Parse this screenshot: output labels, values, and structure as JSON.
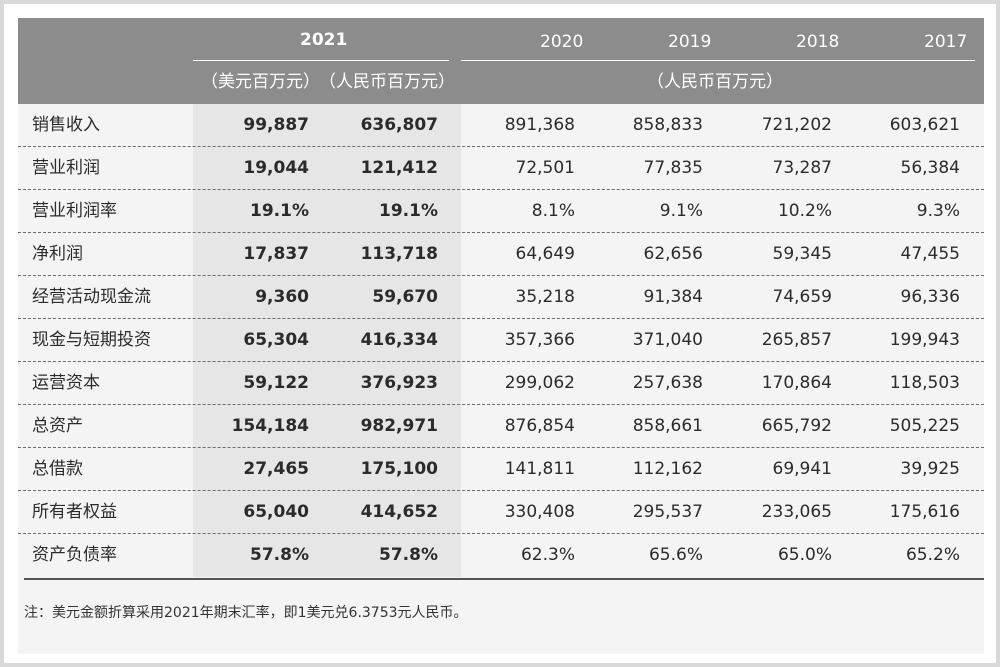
{
  "header": {
    "year_main": "2021",
    "years_other": [
      "2020",
      "2019",
      "2018",
      "2017"
    ],
    "unit_usd": "（美元百万元）",
    "unit_rmb": "（人民币百万元）",
    "unit_rmb_other": "（人民币百万元）"
  },
  "rows": [
    {
      "label": "销售收入",
      "usd": "99,887",
      "rmb": "636,807",
      "y2020": "891,368",
      "y2019": "858,833",
      "y2018": "721,202",
      "y2017": "603,621"
    },
    {
      "label": "营业利润",
      "usd": "19,044",
      "rmb": "121,412",
      "y2020": "72,501",
      "y2019": "77,835",
      "y2018": "73,287",
      "y2017": "56,384"
    },
    {
      "label": "营业利润率",
      "usd": "19.1%",
      "rmb": "19.1%",
      "y2020": "8.1%",
      "y2019": "9.1%",
      "y2018": "10.2%",
      "y2017": "9.3%"
    },
    {
      "label": "净利润",
      "usd": "17,837",
      "rmb": "113,718",
      "y2020": "64,649",
      "y2019": "62,656",
      "y2018": "59,345",
      "y2017": "47,455"
    },
    {
      "label": "经营活动现金流",
      "usd": "9,360",
      "rmb": "59,670",
      "y2020": "35,218",
      "y2019": "91,384",
      "y2018": "74,659",
      "y2017": "96,336"
    },
    {
      "label": "现金与短期投资",
      "usd": "65,304",
      "rmb": "416,334",
      "y2020": "357,366",
      "y2019": "371,040",
      "y2018": "265,857",
      "y2017": "199,943"
    },
    {
      "label": "运营资本",
      "usd": "59,122",
      "rmb": "376,923",
      "y2020": "299,062",
      "y2019": "257,638",
      "y2018": "170,864",
      "y2017": "118,503"
    },
    {
      "label": "总资产",
      "usd": "154,184",
      "rmb": "982,971",
      "y2020": "876,854",
      "y2019": "858,661",
      "y2018": "665,792",
      "y2017": "505,225"
    },
    {
      "label": "总借款",
      "usd": "27,465",
      "rmb": "175,100",
      "y2020": "141,811",
      "y2019": "112,162",
      "y2018": "69,941",
      "y2017": "39,925"
    },
    {
      "label": "所有者权益",
      "usd": "65,040",
      "rmb": "414,652",
      "y2020": "330,408",
      "y2019": "295,537",
      "y2018": "233,065",
      "y2017": "175,616"
    },
    {
      "label": "资产负债率",
      "usd": "57.8%",
      "rmb": "57.8%",
      "y2020": "62.3%",
      "y2019": "65.6%",
      "y2018": "65.0%",
      "y2017": "65.2%"
    }
  ],
  "note": "注：美元金额折算采用2021年期末汇率，即1美元兑6.3753元人民币。"
}
